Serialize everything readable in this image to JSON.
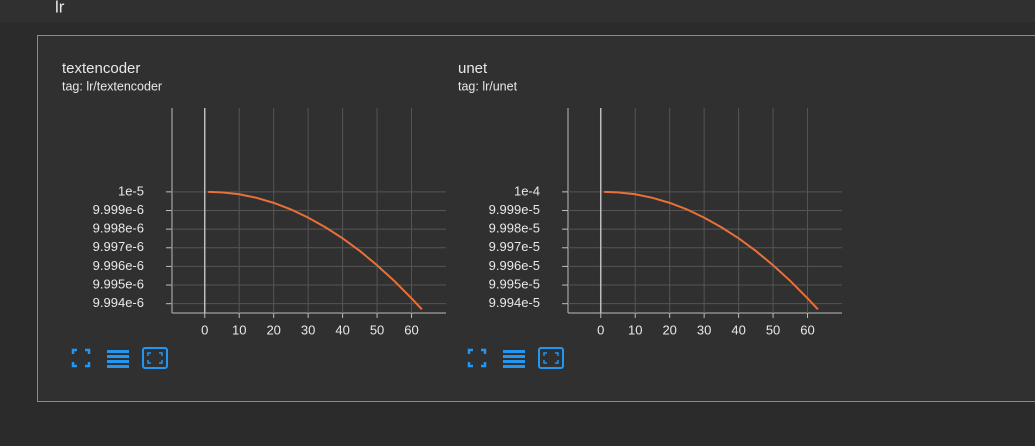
{
  "section": "lr",
  "chart_data": [
    {
      "type": "line",
      "title": "textencoder",
      "subtitle": "tag: lr/textencoder",
      "color": "#e8703a",
      "grid": true,
      "x": [
        1,
        5,
        10,
        15,
        20,
        25,
        30,
        35,
        40,
        45,
        50,
        55,
        60,
        63
      ],
      "values": [
        1e-05,
        9.99997e-06,
        9.99987e-06,
        9.99968e-06,
        9.99941e-06,
        9.99906e-06,
        9.99862e-06,
        9.9981e-06,
        9.99751e-06,
        9.99683e-06,
        9.99606e-06,
        9.99522e-06,
        9.99429e-06,
        9.9937e-06
      ],
      "xlim": [
        -9.5,
        70
      ],
      "xticks": [
        0,
        10,
        20,
        30,
        40,
        50,
        60
      ],
      "ylim": [
        9.9935e-06,
        1.00045e-05
      ],
      "yticks": [
        {
          "value": 9.994e-06,
          "label": "9.994e-6"
        },
        {
          "value": 9.995e-06,
          "label": "9.995e-6"
        },
        {
          "value": 9.996e-06,
          "label": "9.996e-6"
        },
        {
          "value": 9.997e-06,
          "label": "9.997e-6"
        },
        {
          "value": 9.998e-06,
          "label": "9.998e-6"
        },
        {
          "value": 9.999e-06,
          "label": "9.999e-6"
        },
        {
          "value": 1e-05,
          "label": "1e-5"
        }
      ]
    },
    {
      "type": "line",
      "title": "unet",
      "subtitle": "tag: lr/unet",
      "color": "#e8703a",
      "grid": true,
      "x": [
        1,
        5,
        10,
        15,
        20,
        25,
        30,
        35,
        40,
        45,
        50,
        55,
        60,
        63
      ],
      "values": [
        0.0001,
        9.99997e-05,
        9.99987e-05,
        9.99968e-05,
        9.99941e-05,
        9.99906e-05,
        9.99862e-05,
        9.9981e-05,
        9.99751e-05,
        9.99683e-05,
        9.99606e-05,
        9.99522e-05,
        9.99429e-05,
        9.9937e-05
      ],
      "xlim": [
        -9.5,
        70
      ],
      "xticks": [
        0,
        10,
        20,
        30,
        40,
        50,
        60
      ],
      "ylim": [
        9.9935e-05,
        0.000100045
      ],
      "yticks": [
        {
          "value": 9.994e-05,
          "label": "9.994e-5"
        },
        {
          "value": 9.995e-05,
          "label": "9.995e-5"
        },
        {
          "value": 9.996e-05,
          "label": "9.996e-5"
        },
        {
          "value": 9.997e-05,
          "label": "9.997e-5"
        },
        {
          "value": 9.998e-05,
          "label": "9.998e-5"
        },
        {
          "value": 9.999e-05,
          "label": "9.999e-5"
        },
        {
          "value": 0.0001,
          "label": "1e-4"
        }
      ]
    }
  ]
}
